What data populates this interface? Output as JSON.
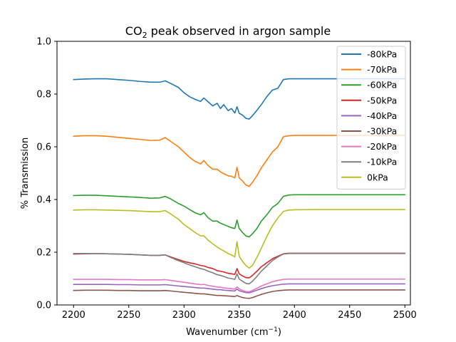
{
  "chart_data": {
    "type": "line",
    "title": {
      "main": "CO",
      "sub": "2",
      "rest": " peak observed in argon sample"
    },
    "xlabel": {
      "main": "Wavenumber (cm",
      "sup": "−1",
      "rest": ")"
    },
    "ylabel": "% Transmission",
    "xlim": [
      2185,
      2505
    ],
    "ylim": [
      0.0,
      1.0
    ],
    "xticks": [
      2200,
      2250,
      2300,
      2350,
      2400,
      2450,
      2500
    ],
    "yticks": [
      0.0,
      0.2,
      0.4,
      0.6,
      0.8,
      1.0
    ],
    "xtick_labels": [
      "2200",
      "2250",
      "2300",
      "2350",
      "2400",
      "2450",
      "2500"
    ],
    "ytick_labels": [
      "0.0",
      "0.2",
      "0.4",
      "0.6",
      "0.8",
      "1.0"
    ],
    "grid": false,
    "legend_position": "top-right",
    "x": [
      2200,
      2210,
      2220,
      2230,
      2240,
      2250,
      2260,
      2270,
      2278,
      2283,
      2288,
      2295,
      2300,
      2305,
      2310,
      2315,
      2318,
      2322,
      2326,
      2330,
      2333,
      2336,
      2340,
      2343,
      2346,
      2348,
      2350,
      2353,
      2356,
      2359,
      2362,
      2366,
      2370,
      2375,
      2380,
      2385,
      2390,
      2395,
      2400,
      2420,
      2450,
      2480,
      2500
    ],
    "series": [
      {
        "name": "-80kPa",
        "color": "#1f77b4",
        "values": [
          0.855,
          0.857,
          0.858,
          0.858,
          0.855,
          0.852,
          0.848,
          0.845,
          0.845,
          0.85,
          0.84,
          0.825,
          0.805,
          0.79,
          0.78,
          0.772,
          0.785,
          0.77,
          0.755,
          0.765,
          0.745,
          0.76,
          0.737,
          0.745,
          0.728,
          0.752,
          0.727,
          0.72,
          0.708,
          0.705,
          0.718,
          0.738,
          0.76,
          0.79,
          0.815,
          0.822,
          0.855,
          0.858,
          0.858,
          0.858,
          0.858,
          0.858,
          0.858
        ]
      },
      {
        "name": "-70kPa",
        "color": "#ff7f0e",
        "values": [
          0.64,
          0.642,
          0.642,
          0.64,
          0.636,
          0.632,
          0.628,
          0.624,
          0.625,
          0.635,
          0.62,
          0.6,
          0.58,
          0.56,
          0.545,
          0.535,
          0.548,
          0.528,
          0.515,
          0.515,
          0.505,
          0.498,
          0.49,
          0.488,
          0.482,
          0.522,
          0.482,
          0.47,
          0.455,
          0.45,
          0.465,
          0.49,
          0.52,
          0.55,
          0.58,
          0.6,
          0.638,
          0.642,
          0.643,
          0.643,
          0.643,
          0.643,
          0.643
        ]
      },
      {
        "name": "-60kPa",
        "color": "#2ca02c",
        "values": [
          0.415,
          0.416,
          0.416,
          0.414,
          0.412,
          0.41,
          0.408,
          0.405,
          0.406,
          0.412,
          0.402,
          0.385,
          0.375,
          0.362,
          0.35,
          0.342,
          0.35,
          0.33,
          0.318,
          0.318,
          0.31,
          0.305,
          0.298,
          0.293,
          0.29,
          0.322,
          0.29,
          0.275,
          0.262,
          0.258,
          0.27,
          0.29,
          0.318,
          0.342,
          0.37,
          0.385,
          0.412,
          0.417,
          0.418,
          0.418,
          0.418,
          0.418,
          0.418
        ]
      },
      {
        "name": "-50kPa",
        "color": "#d62728",
        "values": [
          0.193,
          0.194,
          0.195,
          0.194,
          0.193,
          0.192,
          0.19,
          0.188,
          0.188,
          0.19,
          0.182,
          0.172,
          0.165,
          0.16,
          0.156,
          0.15,
          0.148,
          0.142,
          0.138,
          0.13,
          0.128,
          0.125,
          0.12,
          0.118,
          0.116,
          0.138,
          0.118,
          0.11,
          0.104,
          0.103,
          0.112,
          0.128,
          0.145,
          0.16,
          0.175,
          0.185,
          0.194,
          0.196,
          0.196,
          0.196,
          0.196,
          0.196,
          0.196
        ]
      },
      {
        "name": "-40kPa",
        "color": "#9467bd",
        "values": [
          0.078,
          0.078,
          0.078,
          0.078,
          0.077,
          0.077,
          0.076,
          0.076,
          0.076,
          0.077,
          0.075,
          0.072,
          0.07,
          0.068,
          0.066,
          0.064,
          0.064,
          0.062,
          0.06,
          0.058,
          0.058,
          0.056,
          0.055,
          0.054,
          0.053,
          0.06,
          0.054,
          0.05,
          0.047,
          0.046,
          0.05,
          0.056,
          0.062,
          0.068,
          0.073,
          0.076,
          0.079,
          0.08,
          0.08,
          0.08,
          0.08,
          0.08,
          0.08
        ]
      },
      {
        "name": "-30kPa",
        "color": "#8c564b",
        "values": [
          0.055,
          0.056,
          0.056,
          0.056,
          0.055,
          0.055,
          0.054,
          0.054,
          0.054,
          0.055,
          0.053,
          0.05,
          0.048,
          0.046,
          0.044,
          0.042,
          0.042,
          0.04,
          0.038,
          0.036,
          0.036,
          0.035,
          0.034,
          0.033,
          0.032,
          0.036,
          0.032,
          0.028,
          0.026,
          0.025,
          0.028,
          0.034,
          0.04,
          0.046,
          0.051,
          0.054,
          0.056,
          0.057,
          0.057,
          0.057,
          0.057,
          0.057,
          0.057
        ]
      },
      {
        "name": "-20kPa",
        "color": "#e377c2",
        "values": [
          0.097,
          0.097,
          0.097,
          0.097,
          0.096,
          0.096,
          0.095,
          0.095,
          0.095,
          0.096,
          0.093,
          0.089,
          0.086,
          0.083,
          0.08,
          0.077,
          0.078,
          0.074,
          0.071,
          0.068,
          0.067,
          0.065,
          0.063,
          0.062,
          0.06,
          0.068,
          0.061,
          0.055,
          0.051,
          0.05,
          0.055,
          0.063,
          0.072,
          0.08,
          0.088,
          0.093,
          0.097,
          0.098,
          0.098,
          0.098,
          0.098,
          0.098,
          0.098
        ]
      },
      {
        "name": "-10kPa",
        "color": "#7f7f7f",
        "values": [
          0.195,
          0.195,
          0.195,
          0.194,
          0.193,
          0.192,
          0.19,
          0.188,
          0.188,
          0.19,
          0.18,
          0.168,
          0.16,
          0.152,
          0.145,
          0.138,
          0.135,
          0.128,
          0.122,
          0.115,
          0.112,
          0.108,
          0.102,
          0.1,
          0.097,
          0.118,
          0.098,
          0.09,
          0.082,
          0.08,
          0.09,
          0.108,
          0.128,
          0.148,
          0.168,
          0.182,
          0.193,
          0.195,
          0.195,
          0.195,
          0.195,
          0.195,
          0.195
        ]
      },
      {
        "name": "0kPa",
        "color": "#bcbd22",
        "values": [
          0.36,
          0.361,
          0.361,
          0.36,
          0.359,
          0.358,
          0.356,
          0.354,
          0.354,
          0.358,
          0.345,
          0.325,
          0.305,
          0.29,
          0.275,
          0.262,
          0.262,
          0.245,
          0.232,
          0.22,
          0.212,
          0.205,
          0.195,
          0.19,
          0.182,
          0.24,
          0.185,
          0.165,
          0.15,
          0.14,
          0.15,
          0.18,
          0.215,
          0.26,
          0.3,
          0.33,
          0.355,
          0.36,
          0.361,
          0.362,
          0.362,
          0.362,
          0.362
        ]
      }
    ]
  }
}
